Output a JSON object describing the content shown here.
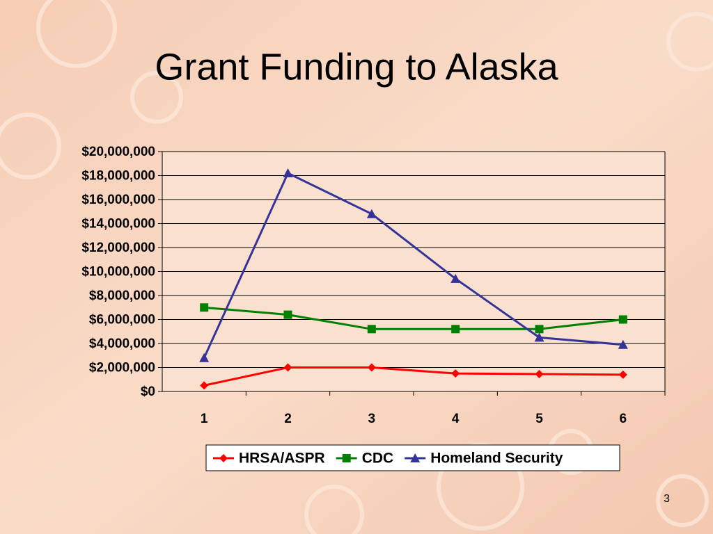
{
  "chart_data": {
    "type": "line",
    "title": "Grant Funding to Alaska",
    "categories": [
      "1",
      "2",
      "3",
      "4",
      "5",
      "6"
    ],
    "series": [
      {
        "name": "HRSA/ASPR",
        "color": "#ff0000",
        "marker": "diamond",
        "values": [
          500000,
          2000000,
          2000000,
          1500000,
          1450000,
          1400000
        ]
      },
      {
        "name": "CDC",
        "color": "#008000",
        "marker": "square",
        "values": [
          7000000,
          6400000,
          5200000,
          5200000,
          5200000,
          6000000
        ]
      },
      {
        "name": "Homeland Security",
        "color": "#333399",
        "marker": "triangle",
        "values": [
          2800000,
          18200000,
          14800000,
          9400000,
          4500000,
          3900000
        ]
      }
    ],
    "ylim": [
      0,
      20000000
    ],
    "yticks": [
      {
        "value": 0,
        "label": "$0"
      },
      {
        "value": 2000000,
        "label": "$2,000,000"
      },
      {
        "value": 4000000,
        "label": "$4,000,000"
      },
      {
        "value": 6000000,
        "label": "$6,000,000"
      },
      {
        "value": 8000000,
        "label": "$8,000,000"
      },
      {
        "value": 10000000,
        "label": "$10,000,000"
      },
      {
        "value": 12000000,
        "label": "$12,000,000"
      },
      {
        "value": 14000000,
        "label": "$14,000,000"
      },
      {
        "value": 16000000,
        "label": "$16,000,000"
      },
      {
        "value": 18000000,
        "label": "$18,000,000"
      },
      {
        "value": 20000000,
        "label": "$20,000,000"
      }
    ],
    "grid": true,
    "legend": "bottom"
  },
  "page_number": "3"
}
